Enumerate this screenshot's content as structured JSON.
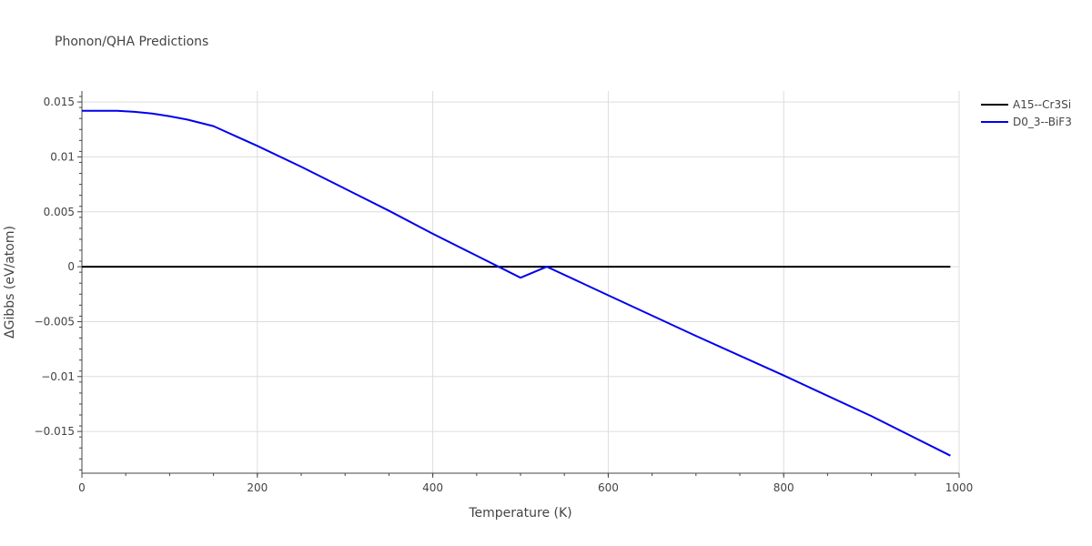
{
  "chart_data": {
    "type": "line",
    "title": "Phonon/QHA Predictions",
    "xlabel": "Temperature (K)",
    "ylabel": "ΔGibbs (eV/atom)",
    "xlim": [
      0,
      1000
    ],
    "ylim": [
      -0.0188,
      0.016
    ],
    "x_ticks": [
      0,
      200,
      400,
      600,
      800,
      1000
    ],
    "x_tick_labels": [
      "0",
      "200",
      "400",
      "600",
      "800",
      "1000"
    ],
    "y_ticks": [
      0.015,
      0.01,
      0.005,
      0,
      -0.005,
      -0.01,
      -0.015
    ],
    "y_tick_labels": [
      "0.015",
      "0.01",
      "0.005",
      "0",
      "−0.005",
      "−0.01",
      "−0.015"
    ],
    "grid": true,
    "legend_position": "top-right",
    "series": [
      {
        "name": "A15--Cr3Si",
        "color": "#000000",
        "x": [
          0,
          990
        ],
        "y": [
          0,
          0
        ]
      },
      {
        "name": "D0_3--BiF3",
        "color": "#0000ee",
        "x": [
          0,
          20,
          40,
          60,
          80,
          100,
          120,
          150,
          200,
          250,
          300,
          350,
          400,
          450,
          500,
          530,
          600,
          700,
          800,
          900,
          990
        ],
        "y": [
          0.0142,
          0.0142,
          0.0142,
          0.0141,
          0.01395,
          0.0137,
          0.0134,
          0.0128,
          0.011,
          0.0091,
          0.0071,
          0.0051,
          0.003,
          0.001,
          -0.001,
          0.0,
          -0.0026,
          -0.0063,
          -0.0099,
          -0.0136,
          -0.0172
        ]
      }
    ]
  }
}
